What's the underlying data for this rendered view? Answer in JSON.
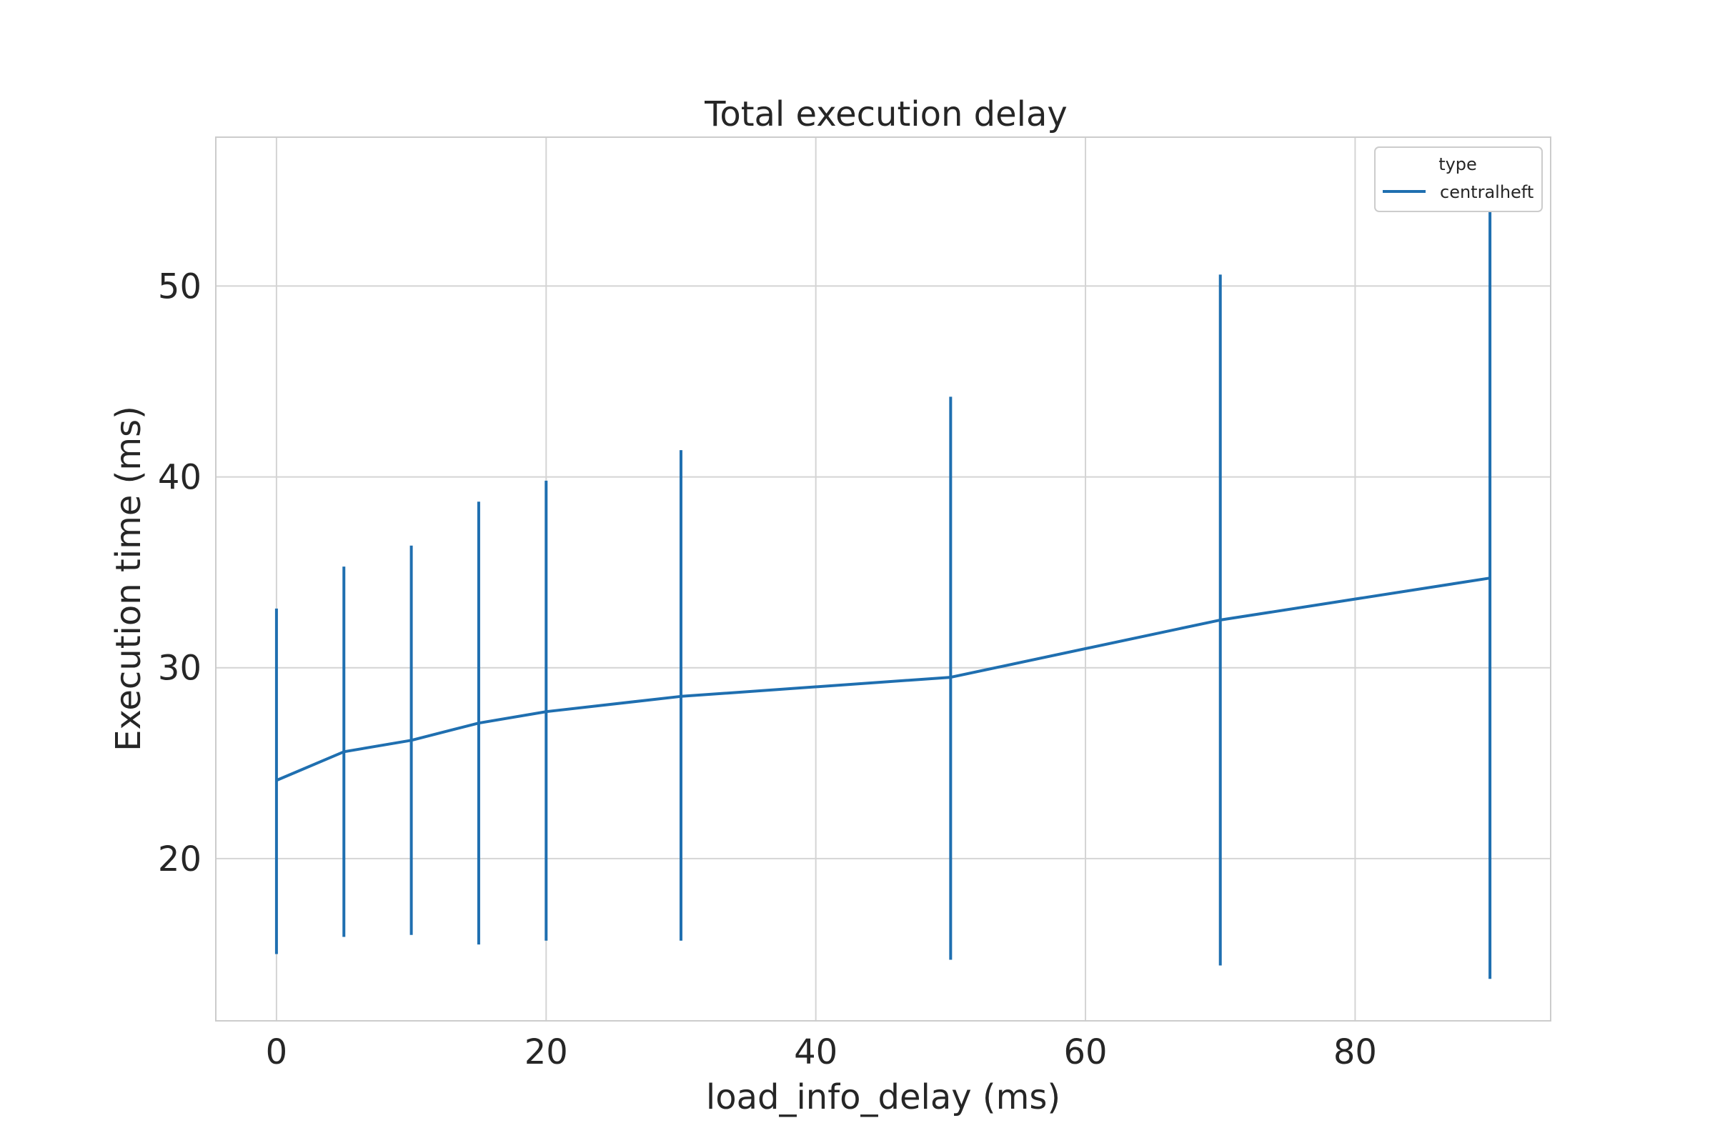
{
  "chart_data": {
    "type": "line",
    "title": "Total execution delay",
    "xlabel": "load_info_delay (ms)",
    "ylabel": "Execution time (ms)",
    "xlim": [
      -4.5,
      94.5
    ],
    "ylim": [
      11.5,
      57.8
    ],
    "xticks": [
      0,
      20,
      40,
      60,
      80
    ],
    "yticks": [
      20,
      30,
      40,
      50
    ],
    "grid": true,
    "legend": {
      "title": "type",
      "position": "top-right"
    },
    "series": [
      {
        "name": "centralheft",
        "color": "#1f6fb0",
        "points": [
          {
            "x": 0,
            "y": 24.1,
            "lo": 15.0,
            "hi": 33.1
          },
          {
            "x": 5,
            "y": 25.6,
            "lo": 15.9,
            "hi": 35.3
          },
          {
            "x": 10,
            "y": 26.2,
            "lo": 16.0,
            "hi": 36.4
          },
          {
            "x": 15,
            "y": 27.1,
            "lo": 15.5,
            "hi": 38.7
          },
          {
            "x": 20,
            "y": 27.7,
            "lo": 15.7,
            "hi": 39.8
          },
          {
            "x": 30,
            "y": 28.5,
            "lo": 15.7,
            "hi": 41.4
          },
          {
            "x": 50,
            "y": 29.5,
            "lo": 14.7,
            "hi": 44.2
          },
          {
            "x": 70,
            "y": 32.5,
            "lo": 14.4,
            "hi": 50.6
          },
          {
            "x": 90,
            "y": 34.7,
            "lo": 13.7,
            "hi": 56.0
          }
        ]
      }
    ]
  }
}
